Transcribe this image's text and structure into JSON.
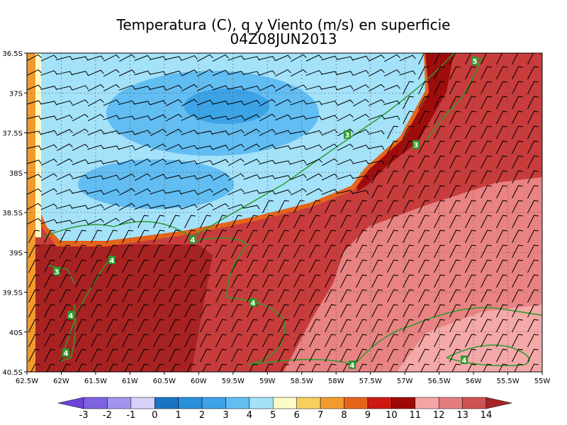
{
  "chart_data": {
    "type": "map",
    "title": "Temperatura (C), q y Viento (m/s) en superficie",
    "subtitle": "04Z08JUN2013",
    "xlim": [
      -62.5,
      -55
    ],
    "ylim": [
      -40.5,
      -36.5
    ],
    "xticks": [
      {
        "value": -62.5,
        "label": "62.5W"
      },
      {
        "value": -62,
        "label": "62W"
      },
      {
        "value": -61.5,
        "label": "61.5W"
      },
      {
        "value": -61,
        "label": "61W"
      },
      {
        "value": -60.5,
        "label": "60.5W"
      },
      {
        "value": -60,
        "label": "60W"
      },
      {
        "value": -59.5,
        "label": "59.5W"
      },
      {
        "value": -59,
        "label": "59W"
      },
      {
        "value": -58.5,
        "label": "58.5W"
      },
      {
        "value": -58,
        "label": "58W"
      },
      {
        "value": -57.5,
        "label": "57.5W"
      },
      {
        "value": -57,
        "label": "57W"
      },
      {
        "value": -56.5,
        "label": "56.5W"
      },
      {
        "value": -56,
        "label": "56W"
      },
      {
        "value": -55.5,
        "label": "55.5W"
      },
      {
        "value": -55,
        "label": "55W"
      }
    ],
    "yticks": [
      {
        "value": -36.5,
        "label": "36.5S"
      },
      {
        "value": -37,
        "label": "37S"
      },
      {
        "value": -37.5,
        "label": "37.5S"
      },
      {
        "value": -38,
        "label": "38S"
      },
      {
        "value": -38.5,
        "label": "38.5S"
      },
      {
        "value": -39,
        "label": "39S"
      },
      {
        "value": -39.5,
        "label": "39.5S"
      },
      {
        "value": -40,
        "label": "40S"
      },
      {
        "value": -40.5,
        "label": "40.5S"
      }
    ],
    "grid": true,
    "colorbar": {
      "levels": [
        -3,
        -2,
        -1,
        0,
        1,
        2,
        3,
        4,
        5,
        6,
        7,
        8,
        9,
        10,
        11,
        12,
        13,
        14
      ],
      "colors": [
        "#6e44d8",
        "#7d62e2",
        "#a195ee",
        "#d6d2f8",
        "#1a74c4",
        "#2a8fdb",
        "#3ca3e6",
        "#62bdf2",
        "#a4e2fa",
        "#fdfbc8",
        "#f6cf5c",
        "#f19a2e",
        "#e5641c",
        "#cc1a12",
        "#a00808",
        "#f5a5a5",
        "#e67d7d",
        "#cf5252",
        "#a82424",
        "#4a2ad0"
      ]
    },
    "contour_labels": [
      "4",
      "4",
      "3",
      "3",
      "4",
      "4",
      "5",
      "3",
      "4",
      "4",
      "4"
    ]
  }
}
